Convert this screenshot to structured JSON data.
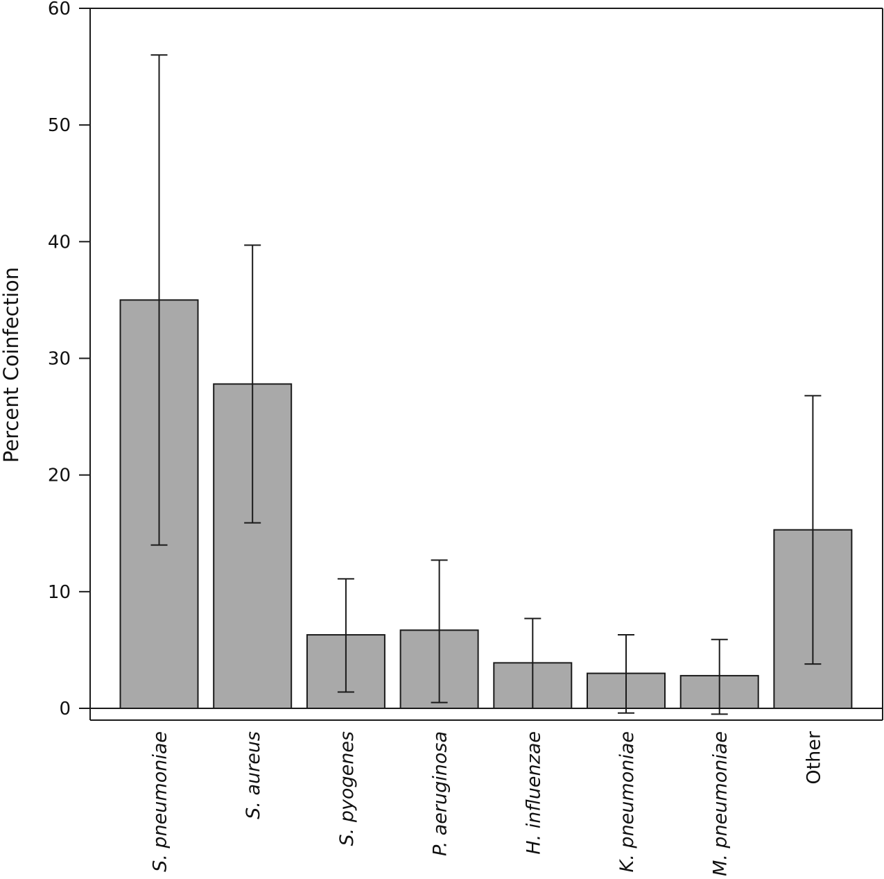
{
  "chart_data": {
    "type": "bar",
    "title": "",
    "xlabel": "",
    "ylabel": "Percent Coinfection",
    "ylim": [
      0,
      60
    ],
    "yticks": [
      0,
      10,
      20,
      30,
      40,
      50,
      60
    ],
    "categories": [
      "S. pneumoniae",
      "S. aureus",
      "S. pyogenes",
      "P. aeruginosa",
      "H. influenzae",
      "K. pneumoniae",
      "M. pneumoniae",
      "Other"
    ],
    "category_italic": [
      true,
      true,
      true,
      true,
      true,
      true,
      true,
      false
    ],
    "values": [
      35,
      27.8,
      6.3,
      6.7,
      3.9,
      3.0,
      2.8,
      15.3
    ],
    "error_low": [
      14,
      15.9,
      1.4,
      0.5,
      0,
      -0.4,
      -0.5,
      3.8
    ],
    "error_high": [
      56,
      39.7,
      11.1,
      12.7,
      7.7,
      6.3,
      5.9,
      26.8
    ],
    "grid": false,
    "legend": "none",
    "colors": {
      "bar_fill": "#a9a9a9",
      "bar_stroke": "#1a1a1a",
      "axis": "#1a1a1a",
      "error_bar": "#1a1a1a"
    }
  }
}
